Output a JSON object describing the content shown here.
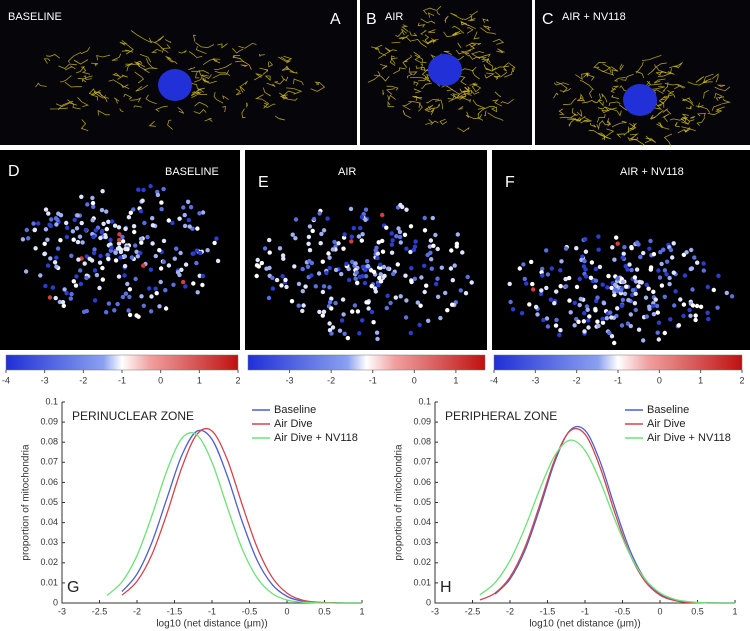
{
  "panels": [
    {
      "letter": "A",
      "label": "BASELINE"
    },
    {
      "letter": "B",
      "label": "AIR"
    },
    {
      "letter": "C",
      "label": "AIR + NV118"
    },
    {
      "letter": "D",
      "label": "BASELINE"
    },
    {
      "letter": "E",
      "label": "AIR"
    },
    {
      "letter": "F",
      "label": "AIR + NV118"
    }
  ],
  "colorbars": [
    {
      "lim": [
        -4,
        2
      ],
      "ticks": [
        -4,
        -3,
        -2,
        -1,
        0,
        1,
        2
      ]
    },
    {
      "lim": [
        -4,
        1.7
      ],
      "ticks": [
        -3,
        -2,
        -1,
        0,
        1
      ]
    },
    {
      "lim": [
        -4,
        2
      ],
      "ticks": [
        -4,
        -3,
        -2,
        -1,
        0,
        1,
        2
      ]
    }
  ],
  "chart_data": [
    {
      "type": "line",
      "panel": "G",
      "title": "PERINUCLEAR ZONE",
      "x_label": "log10 (net distance (μm))",
      "y_label": "proportion of mitochondria",
      "xlim": [
        -3,
        1
      ],
      "xticks": [
        -3,
        -2.5,
        -2,
        -1.5,
        -1,
        -0.5,
        0,
        0.5,
        1
      ],
      "ylim": [
        0,
        0.1
      ],
      "yticks": [
        0,
        0.01,
        0.02,
        0.03,
        0.04,
        0.05,
        0.06,
        0.07,
        0.08,
        0.09,
        0.1
      ],
      "grid": false,
      "legend": "upper right",
      "x": [
        -2.4,
        -2.2,
        -2.0,
        -1.8,
        -1.6,
        -1.4,
        -1.2,
        -1.0,
        -0.8,
        -0.6,
        -0.4,
        -0.2,
        0,
        0.2,
        0.4,
        0.6,
        0.8,
        1.0
      ],
      "series": [
        {
          "name": "Baseline",
          "color": "#4b5fd0",
          "values": [
            null,
            0.0057,
            0.0144,
            0.0303,
            0.0522,
            0.0737,
            0.0855,
            0.0814,
            0.0636,
            0.0408,
            0.0214,
            0.0093,
            0.0033,
            0.001,
            0.0003,
            0.0001,
            0,
            0
          ]
        },
        {
          "name": "Air Dive",
          "color": "#d0454c",
          "values": [
            null,
            0.0039,
            0.0108,
            0.0242,
            0.0446,
            0.0676,
            0.084,
            0.0856,
            0.0717,
            0.0492,
            0.0278,
            0.0129,
            0.0049,
            0.0015,
            0.0004,
            0.0001,
            0,
            0
          ]
        },
        {
          "name": "Air Dive + NV118",
          "color": "#6fe07a",
          "values": [
            0.0038,
            0.0105,
            0.0236,
            0.0436,
            0.066,
            0.082,
            0.0836,
            0.07,
            0.0481,
            0.0271,
            0.0126,
            0.0048,
            0.0015,
            0.0004,
            0.0001,
            0,
            0,
            0
          ]
        }
      ]
    },
    {
      "type": "line",
      "panel": "H",
      "title": "PERIPHERAL ZONE",
      "x_label": "log10 (net distance (μm))",
      "y_label": "proportion of mitochondria",
      "xlim": [
        -3,
        1
      ],
      "xticks": [
        -3,
        -2.5,
        -2,
        -1.5,
        -1,
        -0.5,
        0,
        0.5,
        1
      ],
      "ylim": [
        0,
        0.1
      ],
      "yticks": [
        0,
        0.01,
        0.02,
        0.03,
        0.04,
        0.05,
        0.06,
        0.07,
        0.08,
        0.09,
        0.1
      ],
      "grid": false,
      "legend": "upper right",
      "x": [
        -2.4,
        -2.2,
        -2.0,
        -1.8,
        -1.6,
        -1.4,
        -1.2,
        -1.0,
        -0.8,
        -0.6,
        -0.4,
        -0.2,
        0,
        0.2,
        0.4,
        0.6,
        0.8,
        1.0
      ],
      "series": [
        {
          "name": "Baseline",
          "color": "#4b5fd0",
          "values": [
            null,
            0.0044,
            0.0119,
            0.0262,
            0.0474,
            0.0705,
            0.0859,
            0.0859,
            0.0705,
            0.0474,
            0.0262,
            0.0119,
            0.0044,
            0.0014,
            0.0003,
            0.0001,
            0,
            0
          ]
        },
        {
          "name": "Air Dive",
          "color": "#d0454c",
          "values": [
            0.0015,
            0.0049,
            0.0129,
            0.0278,
            0.0492,
            0.0717,
            0.0856,
            0.084,
            0.0676,
            0.0446,
            0.0242,
            0.0108,
            0.0039,
            0.0012,
            0.0003,
            0.0001,
            0,
            0
          ]
        },
        {
          "name": "Air Dive + NV118",
          "color": "#6fe07a",
          "values": [
            0.0041,
            0.0101,
            0.0211,
            0.0375,
            0.0569,
            0.0735,
            0.081,
            0.0759,
            0.0607,
            0.0413,
            0.024,
            0.0119,
            0.005,
            0.0018,
            0.0006,
            0.0001,
            0,
            0
          ]
        }
      ]
    }
  ]
}
